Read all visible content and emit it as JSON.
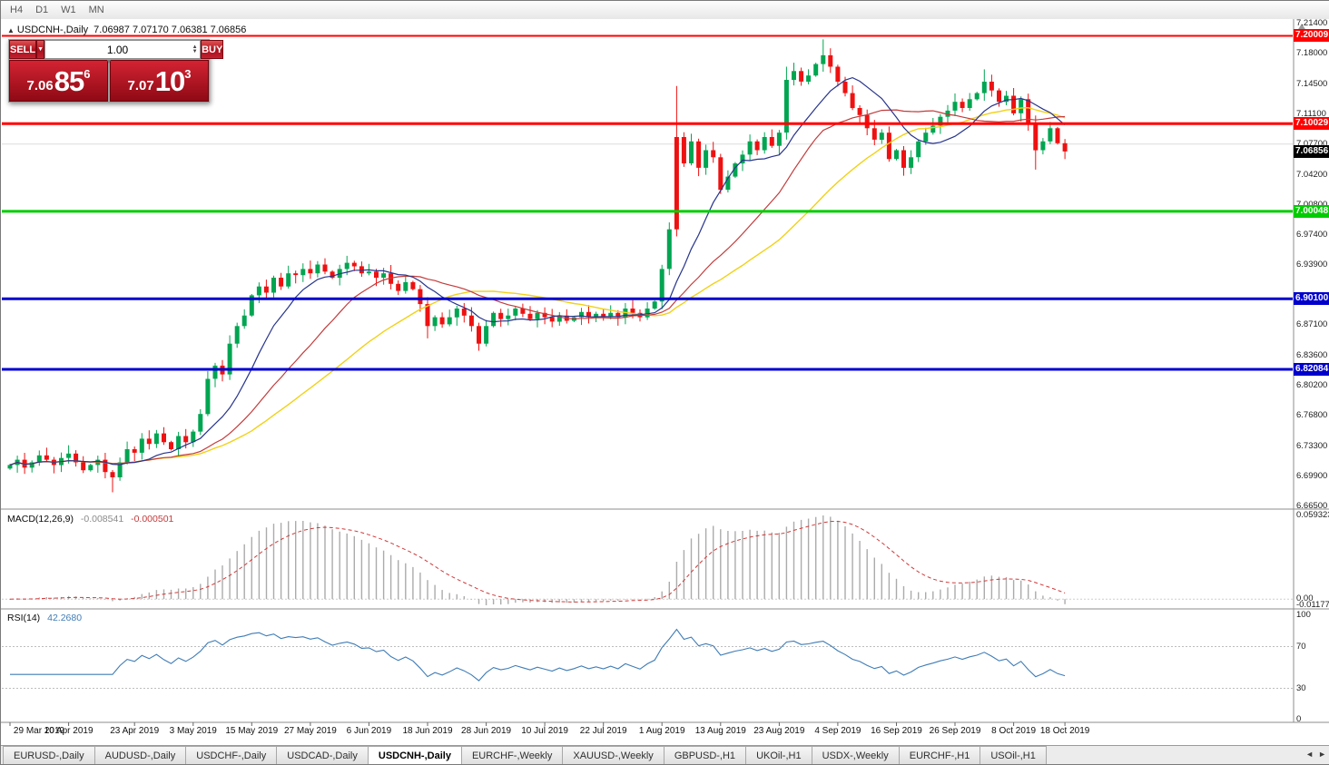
{
  "window": {
    "timeframes": [
      "H4",
      "D1",
      "W1",
      "MN"
    ]
  },
  "icons": {
    "title_marker": "▲",
    "dropdown": "▼",
    "spin_up": "▲",
    "spin_down": "▼",
    "tab_prev": "◄",
    "tab_next": "►",
    "spread": "▼"
  },
  "chart": {
    "title": "USDCNH-,Daily",
    "ohlc": "7.06987 7.07170 7.06381 7.06856",
    "colors": {
      "bull": "#00a551",
      "bear": "#ee1111",
      "ma_fast": "#27348b",
      "ma_mid": "#c23b3b",
      "ma_slow": "#f2d117",
      "grid": "#dcdcdc"
    }
  },
  "one_click": {
    "sell_label": "SELL",
    "buy_label": "BUY",
    "volume": "1.00",
    "sell_price_main": "7.06",
    "sell_price_big": "85",
    "sell_price_sup": "6",
    "buy_price_main": "7.07",
    "buy_price_big": "10",
    "buy_price_sup": "3"
  },
  "price_axis": {
    "ticks": [
      "7.21400",
      "7.18000",
      "7.14500",
      "7.11100",
      "7.07700",
      "7.04200",
      "7.00800",
      "6.97400",
      "6.93900",
      "6.87100",
      "6.83600",
      "6.80200",
      "6.76800",
      "6.73300",
      "6.69900",
      "6.66500"
    ],
    "levels": [
      {
        "label": "7.20009",
        "value": 7.20009,
        "color": "#ff0000",
        "width": 2
      },
      {
        "label": "7.10029",
        "value": 7.10029,
        "color": "#ff0000",
        "width": 3
      },
      {
        "label": "7.00048",
        "value": 7.00048,
        "color": "#00cc00",
        "width": 3
      },
      {
        "label": "6.90100",
        "value": 6.901,
        "color": "#0000cd",
        "width": 3
      },
      {
        "label": "6.82084",
        "value": 6.82084,
        "color": "#0000cd",
        "width": 3
      }
    ],
    "current": {
      "label": "7.06856",
      "value": 7.06856,
      "color": "#000000"
    }
  },
  "chart_data": {
    "type": "candlestick",
    "symbol": "USDCNH",
    "timeframe": "Daily",
    "y_range": [
      6.665,
      7.214
    ],
    "gridline_price": 7.077,
    "first_open": 6.708,
    "closes": [
      6.712,
      6.718,
      6.709,
      6.715,
      6.723,
      6.718,
      6.712,
      6.72,
      6.725,
      6.715,
      6.706,
      6.712,
      6.718,
      6.704,
      6.698,
      6.715,
      6.73,
      6.726,
      6.742,
      6.736,
      6.748,
      6.738,
      6.73,
      6.745,
      6.738,
      6.75,
      6.77,
      6.81,
      6.825,
      6.815,
      6.85,
      6.87,
      6.882,
      6.905,
      6.915,
      6.908,
      6.925,
      6.915,
      6.93,
      6.928,
      6.935,
      6.93,
      6.94,
      6.932,
      6.925,
      6.935,
      6.942,
      6.938,
      6.93,
      6.932,
      6.925,
      6.93,
      6.918,
      6.91,
      6.92,
      6.912,
      6.895,
      6.87,
      6.88,
      6.872,
      6.88,
      6.89,
      6.882,
      6.87,
      6.85,
      6.87,
      6.885,
      6.878,
      6.882,
      6.89,
      6.884,
      6.878,
      6.885,
      6.88,
      6.875,
      6.882,
      6.876,
      6.88,
      6.886,
      6.88,
      6.884,
      6.88,
      6.885,
      6.88,
      6.89,
      6.885,
      6.88,
      6.89,
      6.898,
      6.935,
      6.98,
      7.085,
      7.055,
      7.08,
      7.05,
      7.07,
      7.062,
      7.025,
      7.04,
      7.055,
      7.065,
      7.08,
      7.07,
      7.085,
      7.075,
      7.09,
      7.15,
      7.16,
      7.148,
      7.155,
      7.168,
      7.178,
      7.165,
      7.148,
      7.135,
      7.118,
      7.11,
      7.095,
      7.082,
      7.09,
      7.06,
      7.07,
      7.05,
      7.062,
      7.08,
      7.09,
      7.098,
      7.108,
      7.115,
      7.125,
      7.118,
      7.128,
      7.135,
      7.148,
      7.138,
      7.125,
      7.132,
      7.112,
      7.128,
      7.1,
      7.07,
      7.08,
      7.095,
      7.078,
      7.0686
    ],
    "wick_overrides": {
      "14": {
        "l": 6.681
      },
      "57": {
        "l": 6.856
      },
      "64": {
        "l": 6.842
      },
      "91": {
        "h": 7.143,
        "l": 6.972,
        "col": "bear"
      },
      "106": {
        "h": 7.165
      },
      "111": {
        "h": 7.196
      },
      "122": {
        "l": 7.041
      },
      "133": {
        "h": 7.162
      },
      "140": {
        "l": 7.048
      }
    },
    "ma_periods": {
      "fast": 10,
      "mid": 21,
      "slow": 34
    },
    "x_labels": [
      {
        "label": "29 Mar 2019",
        "i": 0
      },
      {
        "label": "10 Apr 2019",
        "i": 8
      },
      {
        "label": "23 Apr 2019",
        "i": 17
      },
      {
        "label": "3 May 2019",
        "i": 25
      },
      {
        "label": "15 May 2019",
        "i": 33
      },
      {
        "label": "27 May 2019",
        "i": 41
      },
      {
        "label": "6 Jun 2019",
        "i": 49
      },
      {
        "label": "18 Jun 2019",
        "i": 57
      },
      {
        "label": "28 Jun 2019",
        "i": 65
      },
      {
        "label": "10 Jul 2019",
        "i": 73
      },
      {
        "label": "22 Jul 2019",
        "i": 81
      },
      {
        "label": "1 Aug 2019",
        "i": 89
      },
      {
        "label": "13 Aug 2019",
        "i": 97
      },
      {
        "label": "23 Aug 2019",
        "i": 105
      },
      {
        "label": "4 Sep 2019",
        "i": 113
      },
      {
        "label": "16 Sep 2019",
        "i": 121
      },
      {
        "label": "26 Sep 2019",
        "i": 129
      },
      {
        "label": "8 Oct 2019",
        "i": 137
      },
      {
        "label": "18 Oct 2019",
        "i": 144
      }
    ]
  },
  "macd_panel": {
    "name": "MACD(12,26,9)",
    "main_value": "-0.008541",
    "signal_value": "-0.000501",
    "axis_max": "0.059323",
    "axis_zero": "0.00",
    "axis_min": "-0.011773",
    "params": [
      12,
      26,
      9
    ]
  },
  "rsi_panel": {
    "name": "RSI(14)",
    "value": "42.2680",
    "axis": [
      "100",
      "70",
      "30",
      "0"
    ],
    "period": 14,
    "levels": [
      70,
      30
    ]
  },
  "tabs": {
    "items": [
      {
        "label": "EURUSD-,Daily",
        "active": false
      },
      {
        "label": "AUDUSD-,Daily",
        "active": false
      },
      {
        "label": "USDCHF-,Daily",
        "active": false
      },
      {
        "label": "USDCAD-,Daily",
        "active": false
      },
      {
        "label": "USDCNH-,Daily",
        "active": true
      },
      {
        "label": "EURCHF-,Weekly",
        "active": false
      },
      {
        "label": "XAUUSD-,Weekly",
        "active": false
      },
      {
        "label": "GBPUSD-,H1",
        "active": false
      },
      {
        "label": "UKOil-,H1",
        "active": false
      },
      {
        "label": "USDX-,Weekly",
        "active": false
      },
      {
        "label": "EURCHF-,H1",
        "active": false
      },
      {
        "label": "USOil-,H1",
        "active": false
      }
    ]
  }
}
